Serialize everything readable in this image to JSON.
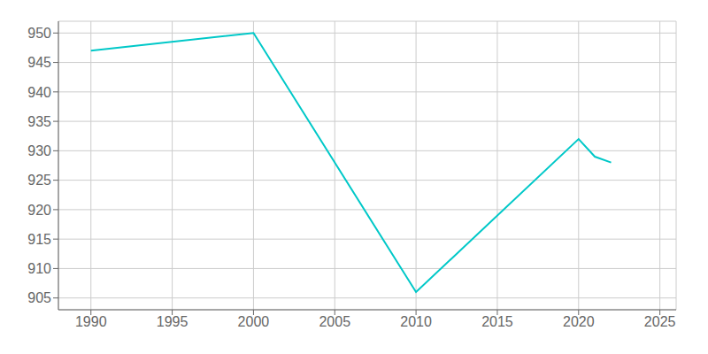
{
  "chart_data": {
    "type": "line",
    "x": [
      1990,
      2000,
      2010,
      2020,
      2021,
      2022
    ],
    "values": [
      947,
      950,
      906,
      932,
      929,
      928
    ],
    "color": "#00c8c8",
    "xlim": [
      1988,
      2026
    ],
    "ylim": [
      903,
      952
    ],
    "xticks": [
      1990,
      1995,
      2000,
      2005,
      2010,
      2015,
      2020,
      2025
    ],
    "yticks": [
      905,
      910,
      915,
      920,
      925,
      930,
      935,
      940,
      945,
      950
    ],
    "grid": true
  }
}
